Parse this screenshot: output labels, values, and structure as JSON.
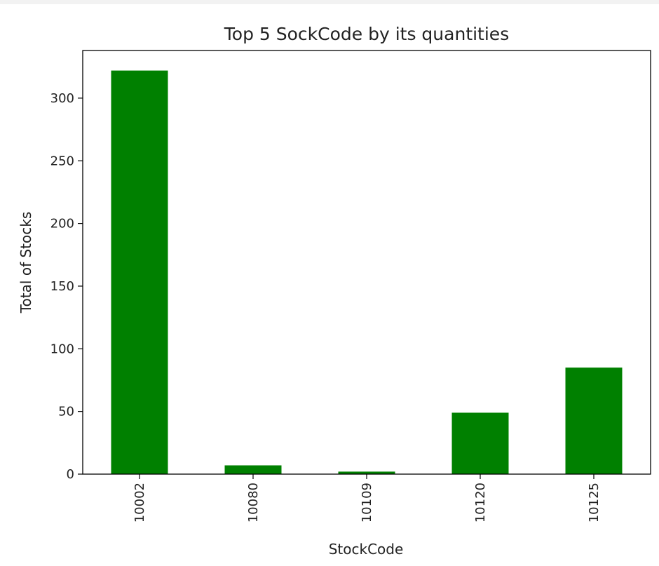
{
  "chart_data": {
    "type": "bar",
    "title": "Top 5 SockCode by its quantities",
    "xlabel": "StockCode",
    "ylabel": "Total of Stocks",
    "categories": [
      "10002",
      "10080",
      "10109",
      "10120",
      "10125"
    ],
    "values": [
      322,
      7,
      2,
      49,
      85
    ],
    "ylim": [
      0,
      338
    ],
    "yticks": [
      0,
      50,
      100,
      150,
      200,
      250,
      300
    ],
    "bar_color": "#008000",
    "grid": false,
    "legend": "none"
  }
}
